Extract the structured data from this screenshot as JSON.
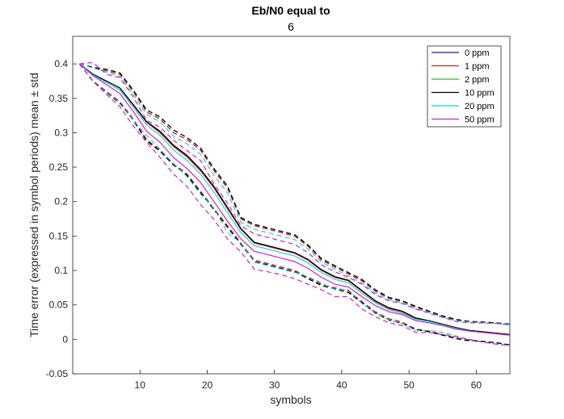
{
  "chart_data": {
    "type": "line",
    "title": "Eb/N0 equal to",
    "subtitle": "6",
    "xlabel": "symbols",
    "ylabel": "Time error (expressed in symbol periods) mean ± std",
    "xlim": [
      0,
      65
    ],
    "ylim": [
      -0.05,
      0.44
    ],
    "xticks": [
      10,
      20,
      30,
      40,
      50,
      60
    ],
    "yticks": [
      -0.05,
      0,
      0.05,
      0.1,
      0.15,
      0.2,
      0.25,
      0.3,
      0.35,
      0.4
    ],
    "ytick_labels": [
      "-0.05",
      "0",
      "0.05",
      "0.1",
      "0.15",
      "0.2",
      "0.25",
      "0.3",
      "0.35",
      "0.4"
    ],
    "legend_position": "top-right",
    "grid": false,
    "x": [
      1,
      3,
      5,
      7,
      9,
      11,
      13,
      15,
      17,
      19,
      21,
      23,
      25,
      27,
      29,
      31,
      33,
      35,
      37,
      39,
      41,
      43,
      45,
      47,
      49,
      51,
      53,
      55,
      57,
      59,
      61,
      63,
      65
    ],
    "series": [
      {
        "name": "0 ppm",
        "color": "#1a1aa6",
        "mean": [
          0.4,
          0.385,
          0.375,
          0.365,
          0.34,
          0.315,
          0.3,
          0.28,
          0.265,
          0.245,
          0.22,
          0.19,
          0.16,
          0.14,
          0.135,
          0.13,
          0.125,
          0.115,
          0.1,
          0.09,
          0.085,
          0.07,
          0.055,
          0.045,
          0.04,
          0.03,
          0.027,
          0.022,
          0.017,
          0.013,
          0.011,
          0.009,
          0.007
        ],
        "upper": [
          0.4,
          0.395,
          0.39,
          0.385,
          0.36,
          0.33,
          0.32,
          0.3,
          0.29,
          0.275,
          0.245,
          0.22,
          0.175,
          0.165,
          0.16,
          0.155,
          0.15,
          0.135,
          0.115,
          0.105,
          0.095,
          0.085,
          0.07,
          0.06,
          0.055,
          0.047,
          0.04,
          0.033,
          0.028,
          0.026,
          0.025,
          0.024,
          0.022
        ],
        "lower": [
          0.4,
          0.375,
          0.36,
          0.345,
          0.32,
          0.29,
          0.275,
          0.255,
          0.24,
          0.215,
          0.19,
          0.165,
          0.14,
          0.115,
          0.11,
          0.105,
          0.1,
          0.09,
          0.08,
          0.075,
          0.07,
          0.055,
          0.04,
          0.03,
          0.025,
          0.015,
          0.012,
          0.007,
          0.002,
          -0.001,
          -0.003,
          -0.005,
          -0.008
        ]
      },
      {
        "name": "1 ppm",
        "color": "#cc1f1f",
        "mean": [
          0.4,
          0.385,
          0.375,
          0.365,
          0.34,
          0.315,
          0.3,
          0.28,
          0.265,
          0.245,
          0.22,
          0.19,
          0.16,
          0.14,
          0.135,
          0.13,
          0.125,
          0.115,
          0.1,
          0.09,
          0.085,
          0.07,
          0.055,
          0.045,
          0.04,
          0.03,
          0.027,
          0.022,
          0.017,
          0.013,
          0.011,
          0.009,
          0.007
        ],
        "upper": [
          0.4,
          0.395,
          0.39,
          0.385,
          0.36,
          0.33,
          0.32,
          0.3,
          0.29,
          0.275,
          0.245,
          0.22,
          0.175,
          0.165,
          0.16,
          0.155,
          0.15,
          0.135,
          0.115,
          0.105,
          0.095,
          0.085,
          0.07,
          0.06,
          0.055,
          0.047,
          0.04,
          0.033,
          0.028,
          0.026,
          0.025,
          0.024,
          0.022
        ],
        "lower": [
          0.4,
          0.375,
          0.36,
          0.345,
          0.32,
          0.29,
          0.275,
          0.255,
          0.24,
          0.215,
          0.19,
          0.165,
          0.14,
          0.115,
          0.11,
          0.105,
          0.1,
          0.09,
          0.08,
          0.075,
          0.07,
          0.055,
          0.04,
          0.03,
          0.025,
          0.015,
          0.012,
          0.007,
          0.002,
          -0.001,
          -0.003,
          -0.005,
          -0.008
        ]
      },
      {
        "name": "2 ppm",
        "color": "#1ec41e",
        "mean": [
          0.4,
          0.385,
          0.375,
          0.365,
          0.341,
          0.316,
          0.302,
          0.282,
          0.267,
          0.247,
          0.222,
          0.192,
          0.161,
          0.141,
          0.136,
          0.131,
          0.126,
          0.116,
          0.101,
          0.091,
          0.086,
          0.071,
          0.056,
          0.046,
          0.041,
          0.031,
          0.027,
          0.022,
          0.017,
          0.013,
          0.011,
          0.009,
          0.007
        ],
        "upper": [
          0.4,
          0.395,
          0.392,
          0.387,
          0.362,
          0.333,
          0.323,
          0.304,
          0.293,
          0.278,
          0.248,
          0.223,
          0.177,
          0.167,
          0.162,
          0.157,
          0.152,
          0.137,
          0.117,
          0.107,
          0.097,
          0.087,
          0.072,
          0.061,
          0.056,
          0.048,
          0.041,
          0.034,
          0.029,
          0.026,
          0.025,
          0.024,
          0.022
        ],
        "lower": [
          0.4,
          0.375,
          0.358,
          0.343,
          0.318,
          0.288,
          0.273,
          0.253,
          0.238,
          0.213,
          0.188,
          0.163,
          0.138,
          0.113,
          0.108,
          0.103,
          0.098,
          0.088,
          0.078,
          0.073,
          0.068,
          0.053,
          0.038,
          0.028,
          0.023,
          0.014,
          0.011,
          0.006,
          0.001,
          -0.002,
          -0.003,
          -0.005,
          -0.008
        ]
      },
      {
        "name": "10 ppm",
        "color": "#000000",
        "mean": [
          0.4,
          0.385,
          0.375,
          0.365,
          0.341,
          0.316,
          0.302,
          0.282,
          0.267,
          0.247,
          0.222,
          0.192,
          0.161,
          0.141,
          0.136,
          0.131,
          0.126,
          0.116,
          0.101,
          0.091,
          0.086,
          0.071,
          0.056,
          0.046,
          0.041,
          0.031,
          0.027,
          0.022,
          0.017,
          0.013,
          0.011,
          0.009,
          0.007
        ],
        "upper": [
          0.4,
          0.395,
          0.392,
          0.387,
          0.362,
          0.333,
          0.323,
          0.304,
          0.293,
          0.278,
          0.248,
          0.223,
          0.177,
          0.167,
          0.162,
          0.157,
          0.152,
          0.137,
          0.117,
          0.107,
          0.097,
          0.087,
          0.072,
          0.061,
          0.056,
          0.048,
          0.041,
          0.034,
          0.029,
          0.026,
          0.025,
          0.024,
          0.022
        ],
        "lower": [
          0.4,
          0.375,
          0.358,
          0.343,
          0.318,
          0.288,
          0.273,
          0.253,
          0.238,
          0.213,
          0.188,
          0.163,
          0.138,
          0.113,
          0.108,
          0.103,
          0.098,
          0.088,
          0.078,
          0.073,
          0.068,
          0.053,
          0.038,
          0.028,
          0.023,
          0.014,
          0.011,
          0.006,
          0.001,
          -0.002,
          -0.003,
          -0.005,
          -0.008
        ]
      },
      {
        "name": "20 ppm",
        "color": "#19d3d3",
        "mean": [
          0.4,
          0.384,
          0.373,
          0.362,
          0.337,
          0.311,
          0.296,
          0.275,
          0.26,
          0.24,
          0.214,
          0.184,
          0.155,
          0.136,
          0.131,
          0.126,
          0.121,
          0.111,
          0.097,
          0.087,
          0.082,
          0.067,
          0.053,
          0.043,
          0.038,
          0.029,
          0.026,
          0.021,
          0.016,
          0.012,
          0.01,
          0.008,
          0.006
        ],
        "upper": [
          0.4,
          0.394,
          0.388,
          0.382,
          0.356,
          0.326,
          0.316,
          0.295,
          0.284,
          0.269,
          0.238,
          0.213,
          0.17,
          0.16,
          0.155,
          0.15,
          0.145,
          0.131,
          0.112,
          0.102,
          0.092,
          0.082,
          0.067,
          0.058,
          0.053,
          0.045,
          0.039,
          0.032,
          0.027,
          0.025,
          0.024,
          0.023,
          0.021
        ],
        "lower": [
          0.4,
          0.374,
          0.358,
          0.342,
          0.318,
          0.296,
          0.276,
          0.255,
          0.236,
          0.211,
          0.19,
          0.155,
          0.14,
          0.112,
          0.107,
          0.102,
          0.097,
          0.091,
          0.082,
          0.072,
          0.072,
          0.052,
          0.039,
          0.028,
          0.023,
          0.013,
          0.013,
          0.01,
          0.005,
          -0.001,
          -0.004,
          -0.007,
          -0.009
        ]
      },
      {
        "name": "50 ppm",
        "color": "#d21ed2",
        "mean": [
          0.4,
          0.383,
          0.37,
          0.357,
          0.331,
          0.302,
          0.286,
          0.264,
          0.248,
          0.228,
          0.2,
          0.172,
          0.146,
          0.128,
          0.123,
          0.118,
          0.113,
          0.103,
          0.09,
          0.08,
          0.076,
          0.062,
          0.049,
          0.04,
          0.036,
          0.027,
          0.024,
          0.02,
          0.015,
          0.012,
          0.01,
          0.008,
          0.006
        ],
        "upper": [
          0.4,
          0.402,
          0.385,
          0.38,
          0.352,
          0.318,
          0.308,
          0.289,
          0.274,
          0.26,
          0.226,
          0.198,
          0.165,
          0.153,
          0.148,
          0.143,
          0.138,
          0.126,
          0.108,
          0.098,
          0.09,
          0.08,
          0.065,
          0.056,
          0.052,
          0.044,
          0.038,
          0.032,
          0.026,
          0.024,
          0.024,
          0.023,
          0.021
        ],
        "lower": [
          0.4,
          0.375,
          0.356,
          0.338,
          0.31,
          0.286,
          0.264,
          0.24,
          0.222,
          0.196,
          0.174,
          0.146,
          0.127,
          0.102,
          0.098,
          0.094,
          0.088,
          0.08,
          0.072,
          0.062,
          0.062,
          0.044,
          0.033,
          0.024,
          0.02,
          0.01,
          0.01,
          0.007,
          0.004,
          0,
          -0.004,
          -0.007,
          -0.009
        ]
      }
    ]
  }
}
